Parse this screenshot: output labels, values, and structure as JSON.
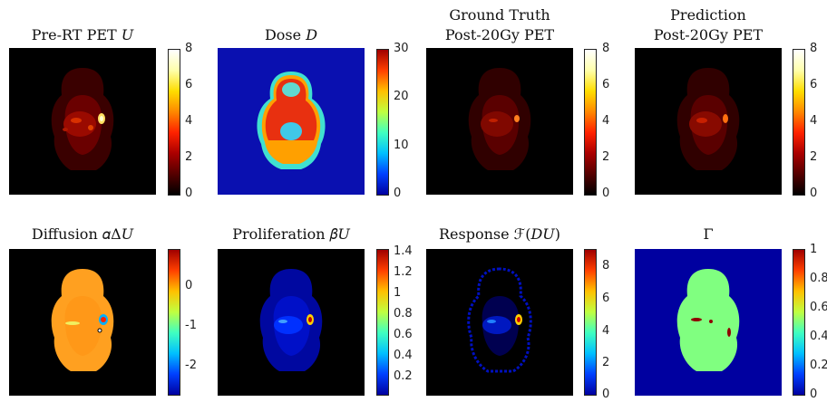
{
  "panels": [
    {
      "title_l1": "",
      "title_l2": "Pre-RT PET 𝑈",
      "ticks": [
        "8",
        "6",
        "4",
        "2",
        "0"
      ],
      "cmap": "hot",
      "kind": "pet1"
    },
    {
      "title_l1": "",
      "title_l2": "Dose 𝐷",
      "ticks": [
        "30",
        "20",
        "10",
        "0"
      ],
      "cmap": "jet",
      "kind": "dose"
    },
    {
      "title_l1": "Ground Truth",
      "title_l2": "Post-20Gy PET",
      "ticks": [
        "8",
        "6",
        "4",
        "2",
        "0"
      ],
      "cmap": "hot",
      "kind": "pet2"
    },
    {
      "title_l1": "Prediction",
      "title_l2": "Post-20Gy PET",
      "ticks": [
        "8",
        "6",
        "4",
        "2",
        "0"
      ],
      "cmap": "hot",
      "kind": "pet3"
    },
    {
      "title_l1": "",
      "title_l2": "Diffusion 𝛼Δ𝑈",
      "ticks": [
        "0",
        "-1",
        "-2"
      ],
      "cmap": "jet",
      "kind": "diff"
    },
    {
      "title_l1": "",
      "title_l2": "Proliferation 𝛽𝑈",
      "ticks": [
        "1.4",
        "1.2",
        "1",
        "0.8",
        "0.6",
        "0.4",
        "0.2"
      ],
      "cmap": "jet",
      "kind": "prolif"
    },
    {
      "title_l1": "",
      "title_l2": "Response ℱ(𝐷𝑈)",
      "ticks": [
        "8",
        "6",
        "4",
        "2",
        "0"
      ],
      "cmap": "jet",
      "kind": "resp"
    },
    {
      "title_l1": "",
      "title_l2": "Γ",
      "ticks": [
        "1",
        "0.8",
        "0.6",
        "0.4",
        "0.2",
        "0"
      ],
      "cmap": "jet",
      "kind": "gamma"
    }
  ]
}
